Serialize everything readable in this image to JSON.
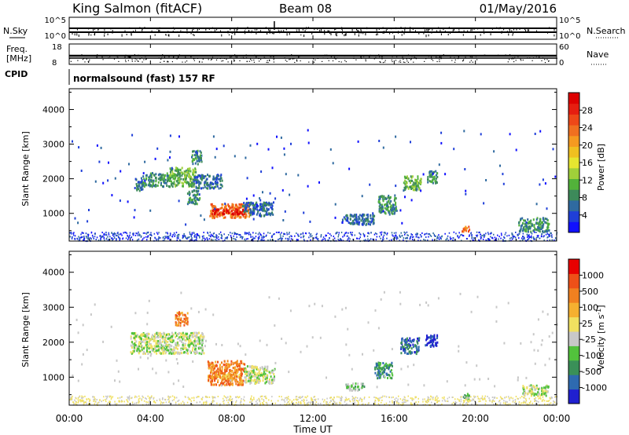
{
  "header": {
    "station": "King Salmon (fitACF)",
    "beam": "Beam 08",
    "date": "01/May/2016"
  },
  "top_panels": {
    "nsky_label": "N.Sky",
    "nsearch_label": "N.Search",
    "nsky_ticks": [
      "10^5",
      "10^0"
    ],
    "nsearch_ticks": [
      "10^5",
      "10^0"
    ],
    "freq_label_1": "Freq.",
    "freq_label_2": "[MHz]",
    "freq_ticks": [
      "18",
      "8"
    ],
    "nave_label": "Nave",
    "nave_ticks": [
      "60",
      "0"
    ],
    "cpid_label": "CPID",
    "cpid_text": "normalsound (fast) 157 RF"
  },
  "chart_data": [
    {
      "type": "heatmap",
      "title": "",
      "xlabel": "Time UT",
      "ylabel": "Slant Range [km]",
      "x_ticks": [
        "00:00",
        "04:00",
        "08:00",
        "12:00",
        "16:00",
        "20:00",
        "00:00"
      ],
      "y_ticks": [
        1000,
        2000,
        3000,
        4000
      ],
      "ylim": [
        200,
        4600
      ],
      "colorbar": {
        "label": "Power [dB]",
        "ticks": [
          "4",
          "8",
          "12",
          "16",
          "20",
          "24",
          "28"
        ],
        "colors": [
          "#1010ff",
          "#1f3fd8",
          "#2f6aa0",
          "#3d8a5a",
          "#52b23a",
          "#a0d03a",
          "#e6e630",
          "#f0c020",
          "#f59a20",
          "#f07020",
          "#ee4818",
          "#e61e10",
          "#dd0000"
        ]
      },
      "regions": [
        {
          "t": [
            3.2,
            3.6
          ],
          "r": [
            1650,
            2050
          ],
          "level": 2
        },
        {
          "t": [
            3.6,
            4.9
          ],
          "r": [
            1800,
            2200
          ],
          "level": 3
        },
        {
          "t": [
            4.9,
            6.2
          ],
          "r": [
            1800,
            2350
          ],
          "level": 4
        },
        {
          "t": [
            6.0,
            6.5
          ],
          "r": [
            2450,
            2850
          ],
          "level": 3
        },
        {
          "t": [
            6.1,
            7.5
          ],
          "r": [
            1750,
            2150
          ],
          "level": 2
        },
        {
          "t": [
            5.8,
            6.4
          ],
          "r": [
            1300,
            1700
          ],
          "level": 3
        },
        {
          "t": [
            6.9,
            8.9
          ],
          "r": [
            900,
            1300
          ],
          "level": 9
        },
        {
          "t": [
            7.0,
            8.6
          ],
          "r": [
            1000,
            1150
          ],
          "level": 12
        },
        {
          "t": [
            8.5,
            10.0
          ],
          "r": [
            950,
            1350
          ],
          "level": 2
        },
        {
          "t": [
            13.4,
            15.0
          ],
          "r": [
            700,
            1000
          ],
          "level": 2
        },
        {
          "t": [
            15.2,
            16.1
          ],
          "r": [
            1000,
            1550
          ],
          "level": 3
        },
        {
          "t": [
            16.4,
            17.3
          ],
          "r": [
            1700,
            2100
          ],
          "level": 4
        },
        {
          "t": [
            17.6,
            18.1
          ],
          "r": [
            1900,
            2250
          ],
          "level": 3
        },
        {
          "t": [
            19.3,
            19.7
          ],
          "r": [
            500,
            650
          ],
          "level": 9
        },
        {
          "t": [
            22.1,
            23.6
          ],
          "r": [
            500,
            900
          ],
          "level": 3
        }
      ]
    },
    {
      "type": "heatmap",
      "title": "",
      "xlabel": "Time UT",
      "ylabel": "Slant Range [km]",
      "x_ticks": [
        "00:00",
        "04:00",
        "08:00",
        "12:00",
        "16:00",
        "20:00",
        "00:00"
      ],
      "y_ticks": [
        1000,
        2000,
        3000,
        4000
      ],
      "ylim": [
        200,
        4600
      ],
      "colorbar": {
        "label": "Velocity [m s^-1]",
        "ticks": [
          "1000",
          "500",
          "100",
          "25",
          "-25",
          "-100",
          "-500",
          "-1000"
        ],
        "colors": [
          "#2020d0",
          "#2e6ab0",
          "#3a9058",
          "#52c23c",
          "#c8c8c8",
          "#f0e060",
          "#f5b030",
          "#f08020",
          "#ee5018",
          "#e80000"
        ]
      },
      "regions": [
        {
          "t": [
            3.0,
            6.6
          ],
          "r": [
            1700,
            2300
          ],
          "level": 4
        },
        {
          "t": [
            5.2,
            5.8
          ],
          "r": [
            2500,
            2900
          ],
          "level": 7
        },
        {
          "t": [
            6.8,
            8.6
          ],
          "r": [
            800,
            1500
          ],
          "level": 7
        },
        {
          "t": [
            7.3,
            8.4
          ],
          "r": [
            950,
            1150
          ],
          "level": 6
        },
        {
          "t": [
            8.6,
            10.1
          ],
          "r": [
            850,
            1350
          ],
          "level": 4
        },
        {
          "t": [
            13.6,
            14.5
          ],
          "r": [
            650,
            850
          ],
          "level": 3
        },
        {
          "t": [
            15.0,
            15.9
          ],
          "r": [
            1000,
            1450
          ],
          "level": 2
        },
        {
          "t": [
            16.3,
            17.2
          ],
          "r": [
            1700,
            2150
          ],
          "level": 1
        },
        {
          "t": [
            17.5,
            18.1
          ],
          "r": [
            1900,
            2250
          ],
          "level": 0
        },
        {
          "t": [
            19.3,
            19.7
          ],
          "r": [
            400,
            560
          ],
          "level": 3
        },
        {
          "t": [
            22.3,
            23.6
          ],
          "r": [
            500,
            800
          ],
          "level": 4
        }
      ]
    }
  ]
}
